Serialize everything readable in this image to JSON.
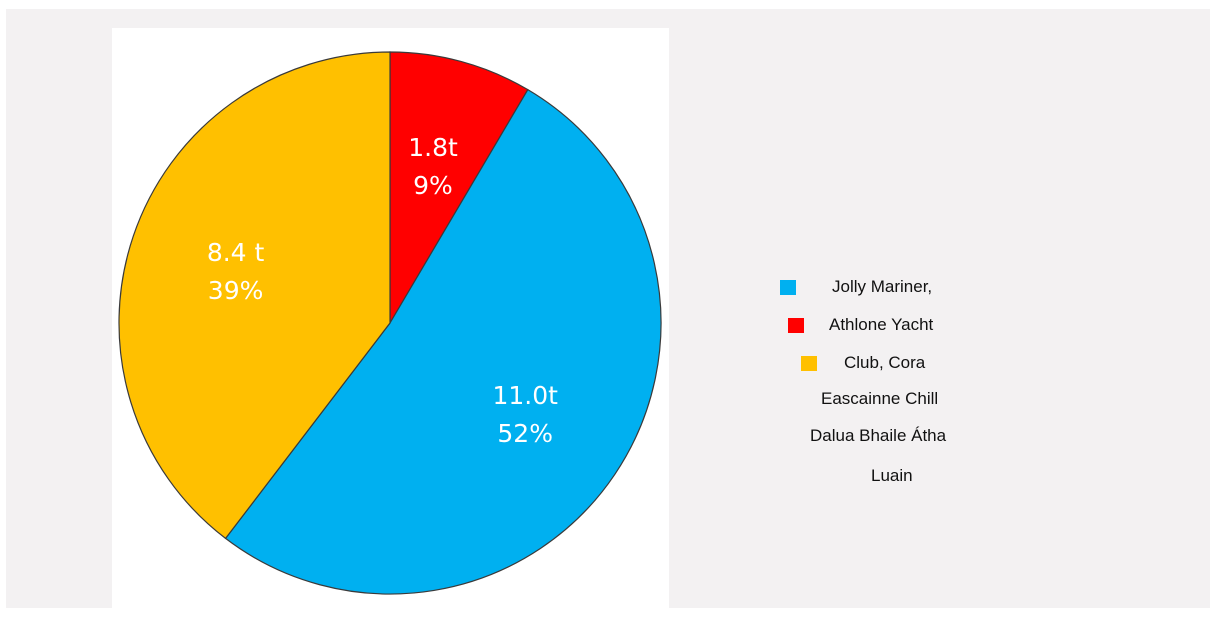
{
  "colors": {
    "jolly": "#00b0f0",
    "athlone": "#ff0000",
    "club": "#ffc000",
    "outline": "#3a3a3a"
  },
  "chart_data": {
    "type": "pie",
    "slices": [
      {
        "value": 1.8,
        "value_label": "1.8t",
        "percent_label": "9%",
        "color_key": "athlone"
      },
      {
        "value": 11.0,
        "value_label": "11.0t",
        "percent_label": "52%",
        "color_key": "jolly"
      },
      {
        "value": 8.4,
        "value_label": "8.4 t",
        "percent_label": "39%",
        "color_key": "club"
      }
    ],
    "legend_placement": "right",
    "legend": [
      {
        "swatch": "jolly",
        "text": "Jolly Mariner,"
      },
      {
        "swatch": "athlone",
        "text": "Athlone Yacht"
      },
      {
        "swatch": "club",
        "text": "Club, Cora"
      },
      {
        "swatch": null,
        "text": "Eascainne Chill"
      },
      {
        "swatch": null,
        "text": "Dalua Bhaile Átha"
      },
      {
        "swatch": null,
        "text": "Luain"
      }
    ]
  }
}
